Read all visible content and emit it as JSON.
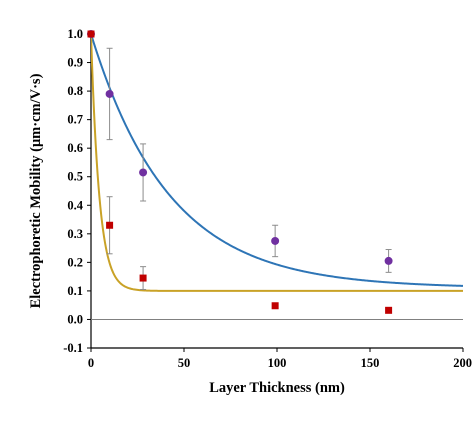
{
  "chart_data": {
    "type": "scatter",
    "title": "",
    "xlabel": "Layer Thickness (nm)",
    "ylabel": "Electrophoretic Mobility (μm·cm/V·s)",
    "xlim": [
      0,
      200
    ],
    "ylim": [
      -0.1,
      1.0
    ],
    "x_ticks": [
      "0",
      "50",
      "100",
      "150",
      "200"
    ],
    "y_ticks": [
      "-0.1",
      "0.0",
      "0.1",
      "0.2",
      "0.3",
      "0.4",
      "0.5",
      "0.6",
      "0.7",
      "0.8",
      "0.9",
      "1.0"
    ],
    "grid": false,
    "legend": "none",
    "series": [
      {
        "marker": "circle",
        "color": "#7030A0",
        "points": [
          {
            "x": 0,
            "y": 1.0,
            "err": 0
          },
          {
            "x": 10,
            "y": 0.79,
            "err": 0.16
          },
          {
            "x": 28,
            "y": 0.515,
            "err": 0.1
          },
          {
            "x": 99,
            "y": 0.275,
            "err": 0.055
          },
          {
            "x": 160,
            "y": 0.205,
            "err": 0.04
          }
        ]
      },
      {
        "marker": "square",
        "color": "#C00000",
        "points": [
          {
            "x": 0,
            "y": 1.0,
            "err": 0
          },
          {
            "x": 10,
            "y": 0.33,
            "err": 0.1
          },
          {
            "x": 28,
            "y": 0.145,
            "err": 0.04
          },
          {
            "x": 99,
            "y": 0.048,
            "err": 0.006
          },
          {
            "x": 160,
            "y": 0.032,
            "err": 0.005
          }
        ]
      }
    ],
    "curves": [
      {
        "color": "#2E75B6",
        "model": "exp_decay",
        "y0": 1.0,
        "plateau": 0.11,
        "tau": 42
      },
      {
        "color": "#C9A227",
        "model": "exp_decay",
        "y0": 1.0,
        "plateau": 0.1,
        "tau": 4.5
      }
    ]
  }
}
